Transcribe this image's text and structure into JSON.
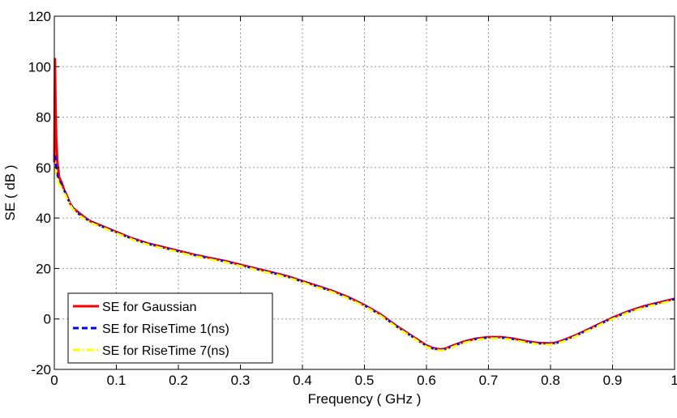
{
  "chart_data": {
    "type": "line",
    "title": "",
    "xlabel": "Frequency ( GHz )",
    "ylabel": "SE ( dB )",
    "xlim": [
      0,
      1
    ],
    "ylim": [
      -20,
      120
    ],
    "xticks": [
      0,
      0.1,
      0.2,
      0.3,
      0.4,
      0.5,
      0.6,
      0.7,
      0.8,
      0.9,
      1
    ],
    "xtick_labels": [
      "0",
      "0.1",
      "0.2",
      "0.3",
      "0.4",
      "0.5",
      "0.6",
      "0.7",
      "0.8",
      "0.9",
      "1"
    ],
    "yticks": [
      -20,
      0,
      20,
      40,
      60,
      80,
      100,
      120
    ],
    "ytick_labels": [
      "-20",
      "0",
      "20",
      "40",
      "60",
      "80",
      "100",
      "120"
    ],
    "grid": true,
    "legend_position": "bottom-left",
    "series": [
      {
        "name": "SE for Gaussian",
        "color": "#ff0000",
        "style": "solid",
        "x": [
          0.0,
          0.001,
          0.002,
          0.003,
          0.005,
          0.008,
          0.012,
          0.016,
          0.02,
          0.025,
          0.03,
          0.04,
          0.05,
          0.06,
          0.08,
          0.1,
          0.125,
          0.15,
          0.175,
          0.2,
          0.225,
          0.25,
          0.275,
          0.3,
          0.325,
          0.35,
          0.375,
          0.4,
          0.425,
          0.45,
          0.475,
          0.5,
          0.525,
          0.55,
          0.575,
          0.6,
          0.61,
          0.62,
          0.625,
          0.63,
          0.64,
          0.66,
          0.68,
          0.7,
          0.72,
          0.74,
          0.76,
          0.78,
          0.8,
          0.81,
          0.82,
          0.84,
          0.86,
          0.88,
          0.9,
          0.925,
          0.95,
          0.975,
          1.0
        ],
        "y": [
          62,
          103,
          85,
          72,
          62,
          56,
          54,
          51,
          49,
          46,
          44,
          42,
          40,
          38.5,
          36.5,
          34.5,
          32,
          30,
          28.5,
          27,
          25.5,
          24.2,
          23,
          21.5,
          20,
          18.5,
          17,
          15,
          13,
          11,
          8.5,
          5.5,
          2,
          -2.5,
          -6.5,
          -10.5,
          -11.5,
          -12,
          -12,
          -11.8,
          -10.8,
          -9,
          -7.8,
          -7.2,
          -7.2,
          -7.8,
          -8.8,
          -9.5,
          -9.7,
          -9.3,
          -8.5,
          -6.5,
          -4.2,
          -1.8,
          0.5,
          3,
          5,
          6.5,
          8
        ]
      },
      {
        "name": "SE for RiseTime 1(ns)",
        "color": "#0000ff",
        "style": "dashed",
        "x": [
          0.0,
          0.002,
          0.003,
          0.005,
          0.008,
          0.012,
          0.016,
          0.02,
          0.025,
          0.03,
          0.04,
          0.05,
          0.06,
          0.08,
          0.1,
          0.125,
          0.15,
          0.175,
          0.2,
          0.225,
          0.25,
          0.275,
          0.3,
          0.325,
          0.35,
          0.375,
          0.4,
          0.425,
          0.45,
          0.475,
          0.5,
          0.525,
          0.55,
          0.575,
          0.6,
          0.61,
          0.62,
          0.625,
          0.63,
          0.64,
          0.66,
          0.68,
          0.7,
          0.72,
          0.74,
          0.76,
          0.78,
          0.8,
          0.81,
          0.82,
          0.84,
          0.86,
          0.88,
          0.9,
          0.925,
          0.95,
          0.975,
          1.0
        ],
        "y": [
          65,
          64,
          60,
          57,
          55,
          53,
          51,
          48.5,
          46,
          44,
          41.5,
          39.8,
          38.3,
          36.3,
          34.3,
          31.8,
          29.8,
          28.3,
          26.8,
          25.3,
          24,
          22.8,
          21.3,
          19.8,
          18.3,
          16.8,
          14.8,
          12.8,
          10.8,
          8.3,
          5.3,
          1.8,
          -2.7,
          -6.7,
          -10.7,
          -11.7,
          -12.2,
          -12.2,
          -12,
          -11,
          -9.2,
          -8,
          -7.4,
          -7.4,
          -8,
          -9,
          -9.7,
          -9.9,
          -9.5,
          -8.7,
          -6.7,
          -4.4,
          -2,
          0.3,
          2.8,
          4.8,
          6.3,
          7.8
        ]
      },
      {
        "name": "SE for RiseTime 7(ns)",
        "color": "#ffff00",
        "style": "dashdot",
        "x": [
          0.0,
          0.002,
          0.003,
          0.005,
          0.008,
          0.012,
          0.016,
          0.02,
          0.025,
          0.03,
          0.04,
          0.05,
          0.06,
          0.08,
          0.1,
          0.125,
          0.15,
          0.175,
          0.2,
          0.225,
          0.25,
          0.275,
          0.3,
          0.325,
          0.35,
          0.375,
          0.4,
          0.425,
          0.45,
          0.475,
          0.5,
          0.525,
          0.55,
          0.575,
          0.6,
          0.61,
          0.62,
          0.625,
          0.63,
          0.64,
          0.66,
          0.68,
          0.7,
          0.72,
          0.74,
          0.76,
          0.78,
          0.8,
          0.81,
          0.82,
          0.84,
          0.86,
          0.88,
          0.9,
          0.925,
          0.95,
          0.975,
          1.0
        ],
        "y": [
          60,
          58,
          56,
          55,
          53.5,
          52,
          50,
          48,
          45.5,
          43.5,
          41,
          39.5,
          38,
          36,
          34,
          31.5,
          29.5,
          28,
          26.5,
          25,
          23.7,
          22.5,
          21,
          19.5,
          18,
          16.5,
          14.5,
          12.5,
          10.5,
          8,
          5,
          1.5,
          -3,
          -7,
          -11,
          -12,
          -12.5,
          -12.5,
          -12.3,
          -11.3,
          -9.5,
          -8.3,
          -7.7,
          -7.7,
          -8.3,
          -9.3,
          -10,
          -10.2,
          -9.8,
          -9,
          -7,
          -4.7,
          -2.3,
          0,
          2.5,
          4.5,
          6,
          7.5
        ]
      }
    ]
  }
}
